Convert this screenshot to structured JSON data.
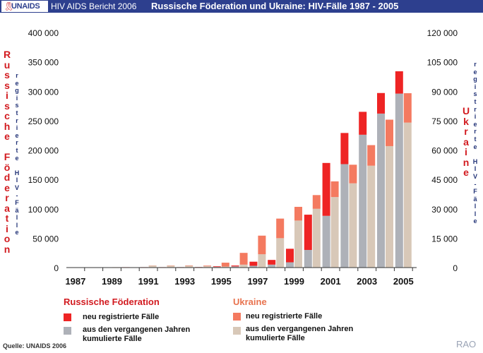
{
  "banner": {
    "logo_text": "UNAIDS",
    "report_label": "HIV AIDS Bericht 2006",
    "title": "Russische Föderation und Ukraine: HIV-Fälle 1987 - 2005"
  },
  "colors": {
    "banner_bg": "#2d3f8e",
    "ru_new": "#ee2424",
    "ru_past": "#aeb1b8",
    "ua_new": "#f47a60",
    "ua_past": "#d8c8b8",
    "axis_label_red": "#d21a1f",
    "axis_label_blue": "#223377"
  },
  "legend": {
    "ru_title": "Russische Föderation",
    "ru_new": "neu registrierte Fälle",
    "ru_past_line1": "aus den vergangenen Jahren",
    "ru_past_line2": "kumulierte Fälle",
    "ua_title": "Ukraine",
    "ua_new": "neu registrierte Fälle",
    "ua_past_line1": "aus den vergangenen Jahren",
    "ua_past_line2": "kumulierte Fälle"
  },
  "footer": {
    "source": "Quelle: UNAIDS 2006",
    "credit": "RAO"
  },
  "chart_data": {
    "type": "bar",
    "title": "Russische Föderation und Ukraine: HIV-Fälle 1987 - 2005",
    "categories": [
      1987,
      1988,
      1989,
      1990,
      1991,
      1992,
      1993,
      1994,
      1995,
      1996,
      1997,
      1998,
      1999,
      2000,
      2001,
      2002,
      2003,
      2004,
      2005
    ],
    "x_tick_labels": [
      "1987",
      "1989",
      "1991",
      "1993",
      "1995",
      "1997",
      "1999",
      "2001",
      "2003",
      "2005"
    ],
    "left_axis": {
      "label_title": "Russische Föderation",
      "label_sub": "registrierte HIV-Fälle",
      "range": [
        0,
        400000
      ],
      "ticks": [
        0,
        50000,
        100000,
        150000,
        200000,
        250000,
        300000,
        350000,
        400000
      ],
      "tick_labels": [
        "0",
        "50 000",
        "100 000",
        "150 000",
        "200 000",
        "250 000",
        "300 000",
        "350 000",
        "400 000"
      ]
    },
    "right_axis": {
      "label_title": "Ukraine",
      "label_sub": "registrierte HIV-Fälle",
      "range": [
        0,
        120000
      ],
      "ticks": [
        0,
        15000,
        30000,
        45000,
        60000,
        75000,
        90000,
        105000,
        120000
      ],
      "tick_labels": [
        "0",
        "15 000",
        "30 000",
        "45 000",
        "60 000",
        "75 000",
        "90 000",
        "105 000",
        "120 000"
      ]
    },
    "series": [
      {
        "name": "Russische Föderation",
        "axis": "left",
        "past": [
          0,
          200,
          400,
          600,
          700,
          700,
          800,
          900,
          1100,
          2000,
          3000,
          5000,
          9000,
          30000,
          88000,
          176000,
          226000,
          262000,
          296000
        ],
        "new": [
          200,
          200,
          200,
          100,
          100,
          100,
          100,
          200,
          1000,
          1500,
          7000,
          8000,
          23000,
          60000,
          90000,
          53000,
          39000,
          35000,
          38000
        ]
      },
      {
        "name": "Ukraine",
        "axis": "right",
        "past": [
          0,
          0,
          0,
          0,
          1000,
          900,
          900,
          700,
          500,
          1500,
          6800,
          15000,
          24000,
          30000,
          36000,
          43000,
          52000,
          62000,
          74000
        ],
        "new": [
          0,
          100,
          200,
          100,
          100,
          150,
          200,
          300,
          2000,
          6000,
          9500,
          10000,
          7000,
          7000,
          8000,
          9500,
          10500,
          13500,
          15000
        ]
      }
    ],
    "grid": false
  }
}
